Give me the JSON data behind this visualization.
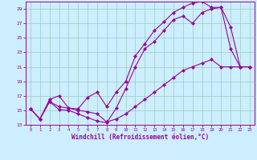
{
  "xlabel": "Windchill (Refroidissement éolien,°C)",
  "bg_color": "#cceeff",
  "grid_color": "#99ccbb",
  "line_color": "#990099",
  "xlim": [
    -0.5,
    23.5
  ],
  "ylim": [
    13,
    30
  ],
  "xticks": [
    0,
    1,
    2,
    3,
    4,
    5,
    6,
    7,
    8,
    9,
    10,
    11,
    12,
    13,
    14,
    15,
    16,
    17,
    18,
    19,
    20,
    21,
    22,
    23
  ],
  "yticks": [
    13,
    15,
    17,
    19,
    21,
    23,
    25,
    27,
    29
  ],
  "curve_top_x": [
    0,
    1,
    2,
    3,
    4,
    5,
    6,
    7,
    8,
    9,
    10,
    11,
    12,
    13,
    14,
    15,
    16,
    17,
    18,
    19,
    20,
    21,
    22,
    23
  ],
  "curve_top_y": [
    15.2,
    13.8,
    16.5,
    17.0,
    15.3,
    15.2,
    16.8,
    17.5,
    15.5,
    17.5,
    19.0,
    22.5,
    24.2,
    26.0,
    27.2,
    28.5,
    29.2,
    29.8,
    30.0,
    29.2,
    29.2,
    26.5,
    21.0,
    21.0
  ],
  "curve_mid_x": [
    0,
    1,
    2,
    3,
    4,
    5,
    6,
    7,
    8,
    9,
    10,
    11,
    12,
    13,
    14,
    15,
    16,
    17,
    18,
    19,
    20,
    21,
    22,
    23
  ],
  "curve_mid_y": [
    15.2,
    13.8,
    16.2,
    15.1,
    15.0,
    14.5,
    14.0,
    13.5,
    13.3,
    15.3,
    18.0,
    21.0,
    23.5,
    24.5,
    26.0,
    27.5,
    28.0,
    27.0,
    28.5,
    29.0,
    29.2,
    23.5,
    21.0,
    21.0
  ],
  "curve_bot_x": [
    0,
    1,
    2,
    3,
    4,
    5,
    6,
    7,
    8,
    9,
    10,
    11,
    12,
    13,
    14,
    15,
    16,
    17,
    18,
    19,
    20,
    21,
    22,
    23
  ],
  "curve_bot_y": [
    15.2,
    13.8,
    16.2,
    15.5,
    15.3,
    15.0,
    14.8,
    14.5,
    13.4,
    13.8,
    14.5,
    15.5,
    16.5,
    17.5,
    18.5,
    19.5,
    20.5,
    21.0,
    21.5,
    22.0,
    21.0,
    21.0,
    21.0,
    21.0
  ]
}
